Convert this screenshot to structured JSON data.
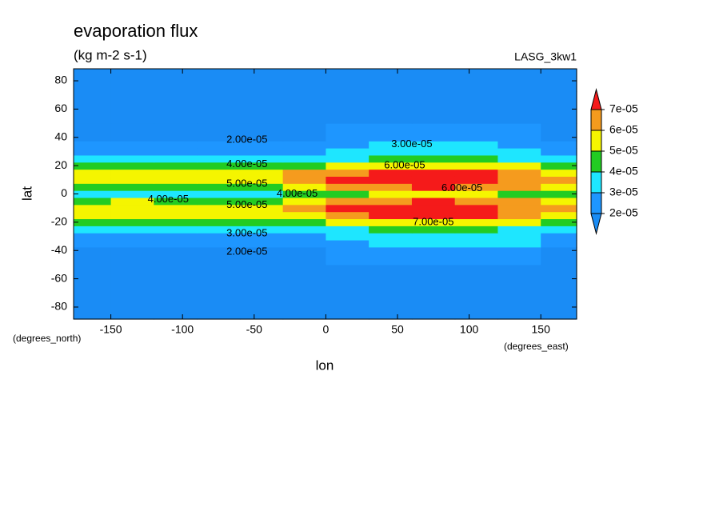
{
  "chart_data": {
    "type": "contour",
    "title": "evaporation flux",
    "subtitle": "(kg m-2 s-1)",
    "model": "LASG_3kw1",
    "xlabel": "lon",
    "ylabel": "lat",
    "xunits": "(degrees_east)",
    "yunits": "(degrees_north)",
    "xlim": [
      -176,
      175
    ],
    "ylim": [
      -88.5,
      88.5
    ],
    "xticks": [
      -150,
      -100,
      -50,
      0,
      50,
      100,
      150
    ],
    "yticks": [
      -80,
      -60,
      -40,
      -20,
      0,
      20,
      40,
      60,
      80
    ],
    "levels": [
      {
        "value": 2e-05,
        "label": "2e-05"
      },
      {
        "value": 3e-05,
        "label": "3e-05"
      },
      {
        "value": 4e-05,
        "label": "4e-05"
      },
      {
        "value": 5e-05,
        "label": "5e-05"
      },
      {
        "value": 6e-05,
        "label": "6e-05"
      },
      {
        "value": 7e-05,
        "label": "7e-05"
      }
    ],
    "colors": [
      "#1a8cf5",
      "#1e96ff",
      "#1ee6ff",
      "#22cc22",
      "#f5f500",
      "#f59b1e",
      "#f51a1a"
    ],
    "lon": [
      -165,
      -135,
      -105,
      -75,
      -45,
      -15,
      15,
      45,
      75,
      105,
      135,
      165
    ],
    "lat": [
      -85,
      -60,
      -40,
      -35,
      -30,
      -25,
      -20,
      -15,
      -10,
      -5,
      0,
      5,
      10,
      15,
      20,
      25,
      30,
      35,
      40,
      60,
      85
    ],
    "z": [
      [
        8e-06,
        8e-06,
        8e-06,
        8e-06,
        8e-06,
        8e-06,
        8e-06,
        8e-06,
        8e-06,
        8e-06,
        8e-06,
        8e-06
      ],
      [
        1.3e-05,
        1.3e-05,
        1.3e-05,
        1.3e-05,
        1.3e-05,
        1.3e-05,
        1.3e-05,
        1.3e-05,
        1.3e-05,
        1.3e-05,
        1.3e-05,
        1.3e-05
      ],
      [
        1.9e-05,
        1.9e-05,
        1.9e-05,
        1.9e-05,
        1.9e-05,
        1.9e-05,
        2e-05,
        2.1e-05,
        2.1e-05,
        2.1e-05,
        2e-05,
        1.9e-05
      ],
      [
        2.2e-05,
        2.1e-05,
        2.1e-05,
        2.1e-05,
        2.2e-05,
        2.4e-05,
        2.9e-05,
        3.2e-05,
        3.3e-05,
        3.2e-05,
        3e-05,
        2.6e-05
      ],
      [
        2.6e-05,
        2.5e-05,
        2.4e-05,
        2.4e-05,
        2.5e-05,
        2.8e-05,
        3.3e-05,
        3.6e-05,
        3.7e-05,
        3.6e-05,
        3.3e-05,
        2.9e-05
      ],
      [
        3.3e-05,
        3.2e-05,
        3.1e-05,
        3e-05,
        3.1e-05,
        3.4e-05,
        3.8e-05,
        4e-05,
        4.1e-05,
        4e-05,
        3.8e-05,
        3.5e-05
      ],
      [
        4.3e-05,
        4.2e-05,
        4.1e-05,
        4e-05,
        4.2e-05,
        4.6e-05,
        5e-05,
        5.3e-05,
        5.5e-05,
        5.3e-05,
        5e-05,
        4.6e-05
      ],
      [
        5.4e-05,
        5.3e-05,
        5.1e-05,
        5e-05,
        5.2e-05,
        5.9e-05,
        6.7e-05,
        7.1e-05,
        7.3e-05,
        7.1e-05,
        6.4e-05,
        5.7e-05
      ],
      [
        5.6e-05,
        5.5e-05,
        5.4e-05,
        5.2e-05,
        5.6e-05,
        6.3e-05,
        7.1e-05,
        7.7e-05,
        7.9e-05,
        7.6e-05,
        6.9e-05,
        6e-05
      ],
      [
        4.8e-05,
        5e-05,
        4.8e-05,
        4.6e-05,
        4.8e-05,
        5.5e-05,
        6.3e-05,
        6.9e-05,
        7.1e-05,
        6.9e-05,
        6.2e-05,
        5.3e-05
      ],
      [
        3.6e-05,
        3.8e-05,
        3.7e-05,
        3.6e-05,
        3.9e-05,
        4.2e-05,
        4.8e-05,
        5e-05,
        5.2e-05,
        5e-05,
        4.8e-05,
        4e-05
      ],
      [
        4.6e-05,
        4.8e-05,
        4.6e-05,
        4.4e-05,
        4.6e-05,
        5.4e-05,
        6.2e-05,
        6.8e-05,
        7e-05,
        6.8e-05,
        6.2e-05,
        5.2e-05
      ],
      [
        5.6e-05,
        5.5e-05,
        5.3e-05,
        5.1e-05,
        5.5e-05,
        6.2e-05,
        7e-05,
        7.6e-05,
        7.8e-05,
        7.5e-05,
        6.8e-05,
        6e-05
      ],
      [
        5.5e-05,
        5.4e-05,
        5.2e-05,
        5e-05,
        5.3e-05,
        6e-05,
        6.8e-05,
        7.2e-05,
        7.4e-05,
        7.2e-05,
        6.5e-05,
        5.8e-05
      ],
      [
        4.4e-05,
        4.3e-05,
        4.2e-05,
        4.1e-05,
        4.3e-05,
        4.8e-05,
        5.3e-05,
        5.6e-05,
        5.8e-05,
        5.6e-05,
        5.2e-05,
        4.7e-05
      ],
      [
        3.3e-05,
        3.2e-05,
        3.1e-05,
        3e-05,
        3.2e-05,
        3.6e-05,
        3.9e-05,
        4e-05,
        4.1e-05,
        4e-05,
        3.8e-05,
        3.5e-05
      ],
      [
        2.6e-05,
        2.5e-05,
        2.4e-05,
        2.4e-05,
        2.5e-05,
        2.8e-05,
        3.2e-05,
        3.5e-05,
        3.6e-05,
        3.5e-05,
        3.2e-05,
        2.8e-05
      ],
      [
        2.2e-05,
        2.1e-05,
        2.1e-05,
        2.1e-05,
        2.2e-05,
        2.4e-05,
        2.8e-05,
        3.1e-05,
        3.2e-05,
        3.1e-05,
        2.9e-05,
        2.5e-05
      ],
      [
        1.9e-05,
        1.9e-05,
        1.9e-05,
        1.9e-05,
        1.9e-05,
        1.9e-05,
        2e-05,
        2.1e-05,
        2.1e-05,
        2.1e-05,
        2e-05,
        1.9e-05
      ],
      [
        1.2e-05,
        1.2e-05,
        1.2e-05,
        1.2e-05,
        1.2e-05,
        1.2e-05,
        1.2e-05,
        1.2e-05,
        1.2e-05,
        1.2e-05,
        1.2e-05,
        1.2e-05
      ],
      [
        8e-06,
        8e-06,
        8e-06,
        8e-06,
        8e-06,
        8e-06,
        8e-06,
        8e-06,
        8e-06,
        8e-06,
        8e-06,
        8e-06
      ]
    ],
    "contour_labels": [
      {
        "text": "2.00e-05",
        "lon": -55,
        "lat": 38
      },
      {
        "text": "3.00e-05",
        "lon": 60,
        "lat": 35
      },
      {
        "text": "4.00e-05",
        "lon": -55,
        "lat": 21
      },
      {
        "text": "6.00e-05",
        "lon": 55,
        "lat": 20
      },
      {
        "text": "5.00e-05",
        "lon": -55,
        "lat": 7
      },
      {
        "text": "4.00e-05",
        "lon": -110,
        "lat": -4
      },
      {
        "text": "4.00e-05",
        "lon": -20,
        "lat": 0
      },
      {
        "text": "6.00e-05",
        "lon": 95,
        "lat": 4
      },
      {
        "text": "5.00e-05",
        "lon": -55,
        "lat": -8
      },
      {
        "text": "7.00e-05",
        "lon": 75,
        "lat": -20
      },
      {
        "text": "3.00e-05",
        "lon": -55,
        "lat": -28
      },
      {
        "text": "2.00e-05",
        "lon": -55,
        "lat": -41
      }
    ]
  }
}
